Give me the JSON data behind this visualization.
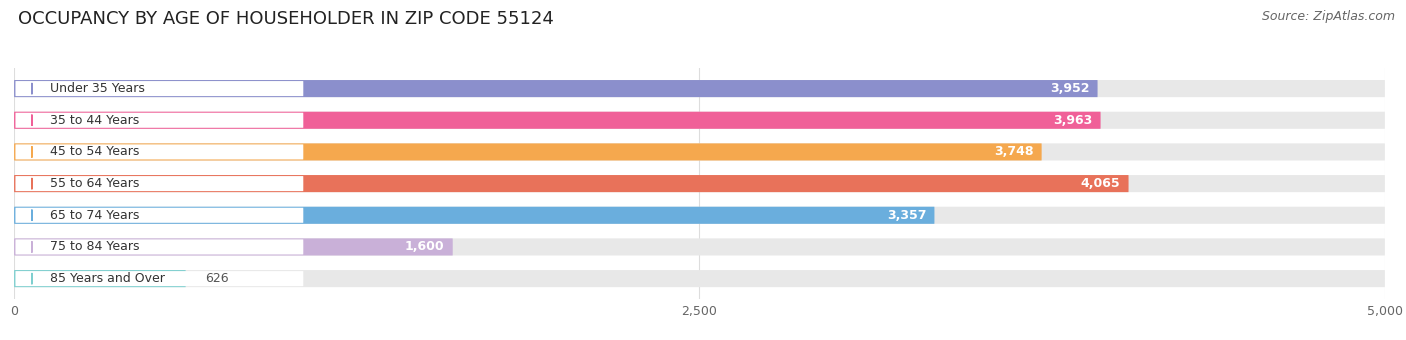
{
  "title": "OCCUPANCY BY AGE OF HOUSEHOLDER IN ZIP CODE 55124",
  "source": "Source: ZipAtlas.com",
  "categories": [
    "Under 35 Years",
    "35 to 44 Years",
    "45 to 54 Years",
    "55 to 64 Years",
    "65 to 74 Years",
    "75 to 84 Years",
    "85 Years and Over"
  ],
  "values": [
    3952,
    3963,
    3748,
    4065,
    3357,
    1600,
    626
  ],
  "bar_colors": [
    "#8b8fcc",
    "#f06098",
    "#f5a84e",
    "#e8725a",
    "#6aaedd",
    "#c9b0d8",
    "#7ecfcf"
  ],
  "bar_bg_color": "#e8e8e8",
  "label_bg_color": "#ffffff",
  "xlim": [
    0,
    5000
  ],
  "xticks": [
    0,
    2500,
    5000
  ],
  "title_fontsize": 13,
  "source_fontsize": 9,
  "label_fontsize": 9,
  "value_fontsize": 9,
  "background_color": "#ffffff",
  "value_threshold_inside": 1000
}
